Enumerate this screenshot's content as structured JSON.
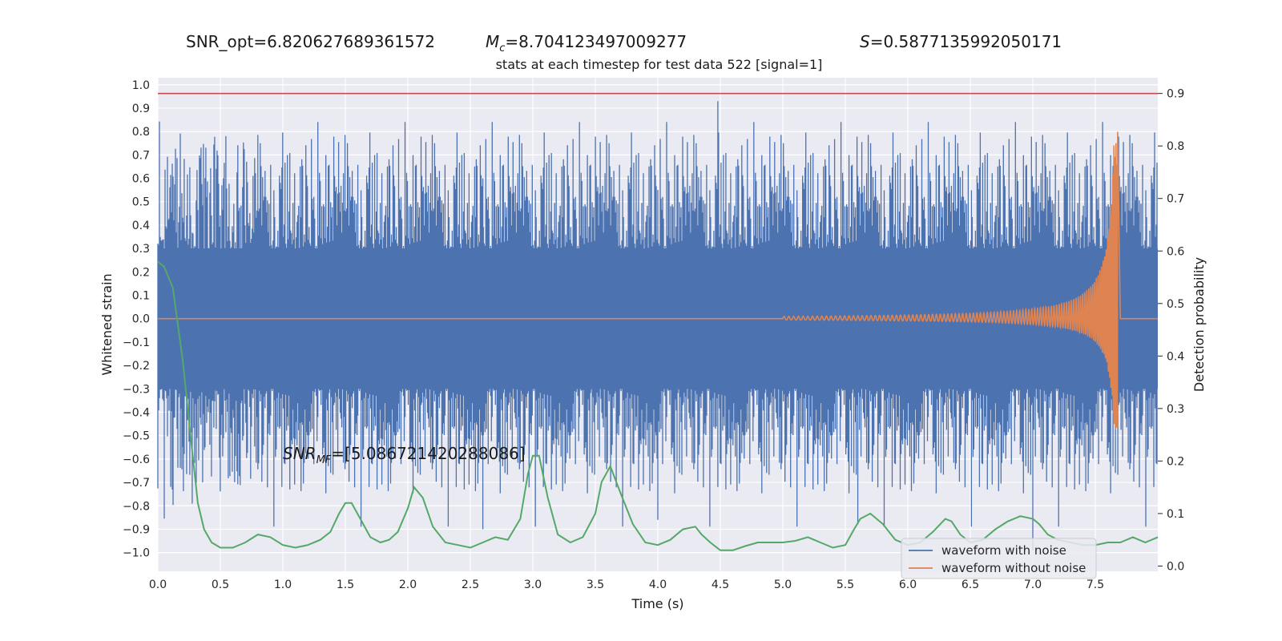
{
  "header": {
    "snr_opt": "SNR_opt=6.820627689361572",
    "mc_symbol": "M",
    "mc_sub": "c",
    "mc_value": "=8.704123497009277",
    "s_symbol": "S",
    "s_value": "=0.5877135992050171",
    "subtitle": "stats at each timestep for test data 522 [signal=1]"
  },
  "annotation": {
    "snr_symbol": "SNR",
    "snr_sub": "MF",
    "snr_value": "=[5.086721420288086]",
    "x": 1.0,
    "y": -0.6
  },
  "colors": {
    "background": "#eaeaf2",
    "grid": "#ffffff",
    "noise": "#4c72b0",
    "clean": "#dd8452",
    "probability": "#55a868",
    "threshold": "#c44e52"
  },
  "chart_data": {
    "type": "line",
    "title": "stats at each timestep for test data 522 [signal=1]",
    "xlabel": "Time (s)",
    "ylabel_left": "Whitened strain",
    "ylabel_right": "Detection probability",
    "xlim": [
      0.0,
      8.0
    ],
    "ylim_left": [
      -1.08,
      1.03
    ],
    "ylim_right": [
      -0.01,
      0.93
    ],
    "xticks": [
      "0.0",
      "0.5",
      "1.0",
      "1.5",
      "2.0",
      "2.5",
      "3.0",
      "3.5",
      "4.0",
      "4.5",
      "5.0",
      "5.5",
      "6.0",
      "6.5",
      "7.0",
      "7.5"
    ],
    "yticks_left": [
      "1.0",
      "0.9",
      "0.8",
      "0.7",
      "0.6",
      "0.5",
      "0.4",
      "0.3",
      "0.2",
      "0.1",
      "0.0",
      "−0.1",
      "−0.2",
      "−0.3",
      "−0.4",
      "−0.5",
      "−0.6",
      "−0.7",
      "−0.8",
      "−0.9",
      "−1.0"
    ],
    "yticks_right": [
      "0.9",
      "0.8",
      "0.7",
      "0.6",
      "0.5",
      "0.4",
      "0.3",
      "0.2",
      "0.1",
      "0.0"
    ],
    "grid": true,
    "legend_position": "lower-right",
    "threshold": 0.9,
    "series": [
      {
        "name": "waveform with noise",
        "axis": "left",
        "description_values": {
          "band_amplitude": 0.3,
          "max_spike": 0.93,
          "min_spike": -0.99
        }
      },
      {
        "name": "waveform without noise",
        "axis": "left",
        "chirp_start": 5.0,
        "merger_time": 7.65,
        "merger_peak": 0.8,
        "merger_trough": -0.4
      },
      {
        "name": "detection probability",
        "axis": "right",
        "x": [
          0.0,
          0.05,
          0.12,
          0.2,
          0.27,
          0.32,
          0.37,
          0.43,
          0.5,
          0.6,
          0.7,
          0.8,
          0.9,
          1.0,
          1.1,
          1.2,
          1.3,
          1.38,
          1.45,
          1.5,
          1.55,
          1.62,
          1.7,
          1.78,
          1.85,
          1.92,
          2.0,
          2.05,
          2.12,
          2.2,
          2.3,
          2.4,
          2.5,
          2.6,
          2.7,
          2.8,
          2.9,
          2.96,
          3.0,
          3.05,
          3.12,
          3.2,
          3.3,
          3.4,
          3.5,
          3.55,
          3.62,
          3.7,
          3.8,
          3.9,
          4.0,
          4.1,
          4.2,
          4.3,
          4.35,
          4.42,
          4.5,
          4.6,
          4.7,
          4.8,
          4.9,
          5.0,
          5.1,
          5.2,
          5.3,
          5.4,
          5.5,
          5.57,
          5.62,
          5.7,
          5.8,
          5.9,
          6.0,
          6.1,
          6.2,
          6.3,
          6.35,
          6.42,
          6.5,
          6.6,
          6.7,
          6.8,
          6.9,
          7.0,
          7.05,
          7.12,
          7.2,
          7.3,
          7.4,
          7.5,
          7.6,
          7.7,
          7.8,
          7.9,
          8.0
        ],
        "y": [
          0.58,
          0.57,
          0.53,
          0.39,
          0.23,
          0.12,
          0.07,
          0.045,
          0.035,
          0.035,
          0.045,
          0.06,
          0.055,
          0.04,
          0.035,
          0.04,
          0.05,
          0.065,
          0.1,
          0.12,
          0.12,
          0.09,
          0.055,
          0.045,
          0.05,
          0.065,
          0.11,
          0.15,
          0.13,
          0.075,
          0.045,
          0.04,
          0.035,
          0.045,
          0.055,
          0.05,
          0.09,
          0.175,
          0.21,
          0.21,
          0.13,
          0.06,
          0.045,
          0.055,
          0.1,
          0.16,
          0.19,
          0.14,
          0.08,
          0.045,
          0.04,
          0.05,
          0.07,
          0.075,
          0.06,
          0.045,
          0.03,
          0.03,
          0.038,
          0.045,
          0.045,
          0.045,
          0.048,
          0.055,
          0.045,
          0.035,
          0.04,
          0.07,
          0.09,
          0.1,
          0.08,
          0.05,
          0.04,
          0.045,
          0.065,
          0.09,
          0.085,
          0.06,
          0.045,
          0.05,
          0.07,
          0.085,
          0.095,
          0.09,
          0.08,
          0.06,
          0.05,
          0.045,
          0.04,
          0.04,
          0.045,
          0.045,
          0.055,
          0.045,
          0.055
        ]
      }
    ]
  }
}
